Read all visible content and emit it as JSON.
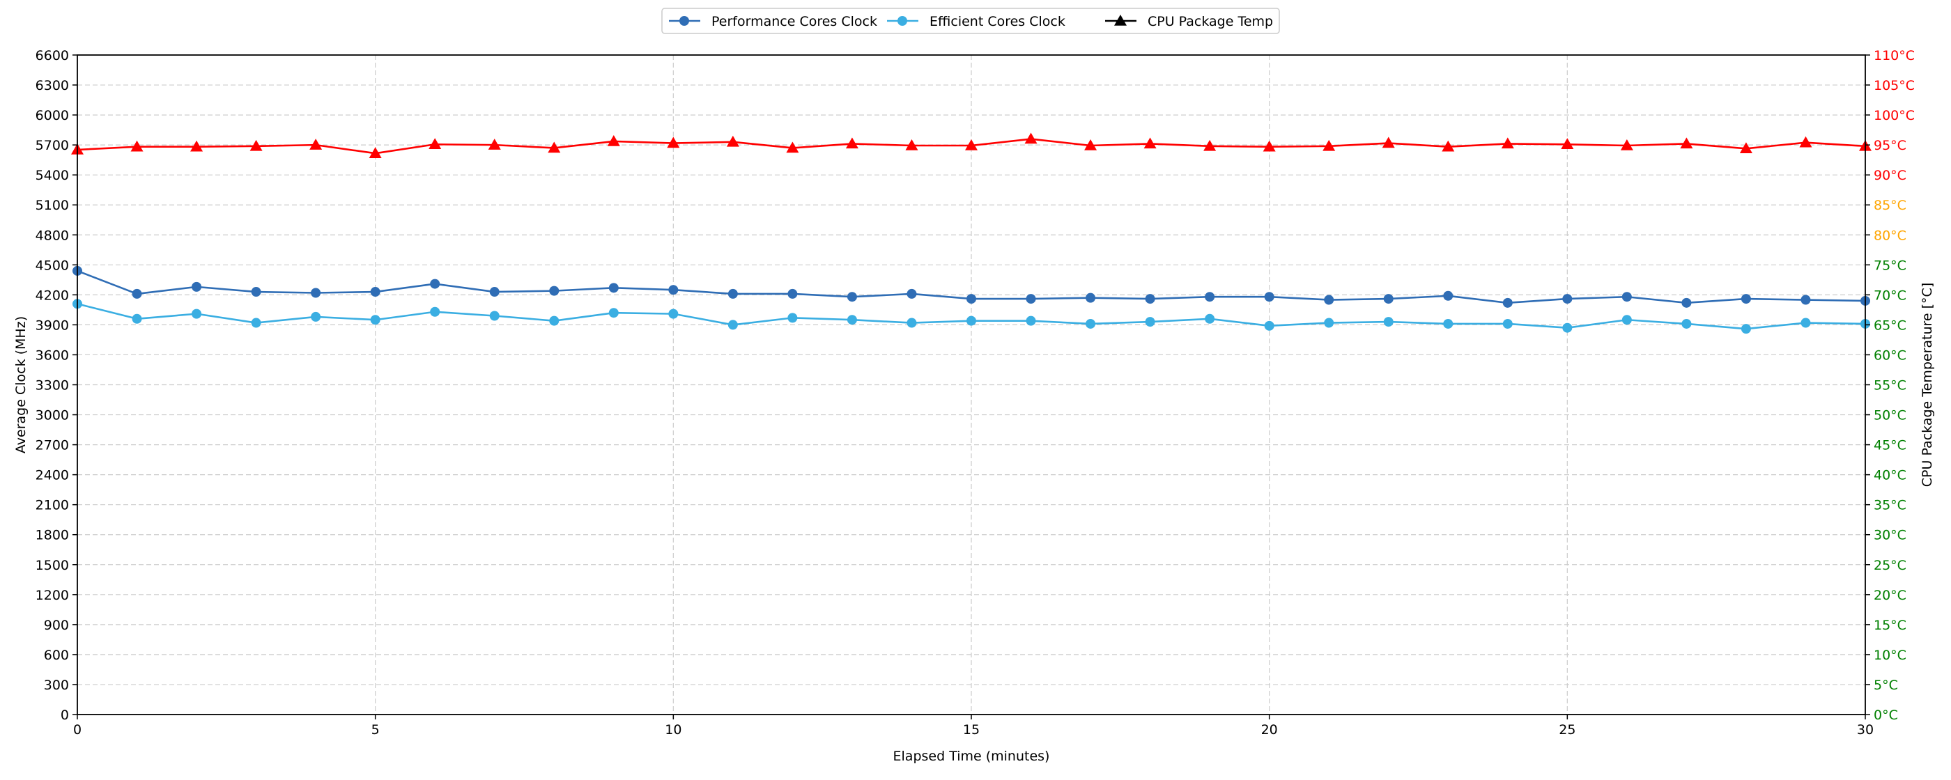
{
  "chart_data": {
    "type": "line",
    "xlabel": "Elapsed Time (minutes)",
    "ylabel": "Average Clock (MHz)",
    "y2label": "CPU Package Temperature [°C]",
    "xlim": [
      0,
      30
    ],
    "ylim": [
      0,
      6600
    ],
    "y2lim": [
      0,
      110
    ],
    "x_ticks": [
      0,
      5,
      10,
      15,
      20,
      25,
      30
    ],
    "y_ticks": [
      0,
      300,
      600,
      900,
      1200,
      1500,
      1800,
      2100,
      2400,
      2700,
      3000,
      3300,
      3600,
      3900,
      4200,
      4500,
      4800,
      5100,
      5400,
      5700,
      6000,
      6300,
      6600
    ],
    "y2_ticks": [
      0,
      5,
      10,
      15,
      20,
      25,
      30,
      35,
      40,
      45,
      50,
      55,
      60,
      65,
      70,
      75,
      80,
      85,
      90,
      95,
      100,
      105,
      110
    ],
    "y2_tick_suffix": "°C",
    "y2_tick_color_bands": [
      {
        "max": 75,
        "color": "#008000"
      },
      {
        "max": 85,
        "color": "#ffa500"
      },
      {
        "max": 110,
        "color": "#ff0000"
      }
    ],
    "grid": true,
    "legend_position": "top-center",
    "x": [
      0,
      1,
      2,
      3,
      4,
      5,
      6,
      7,
      8,
      9,
      10,
      11,
      12,
      13,
      14,
      15,
      16,
      17,
      18,
      19,
      20,
      21,
      22,
      23,
      24,
      25,
      26,
      27,
      28,
      29,
      30
    ],
    "series": [
      {
        "name": "Performance Cores Clock",
        "axis": "left",
        "color": "#2f6db5",
        "marker": "circle",
        "values": [
          4440,
          4210,
          4280,
          4230,
          4220,
          4230,
          4310,
          4230,
          4240,
          4270,
          4250,
          4210,
          4210,
          4180,
          4210,
          4160,
          4160,
          4170,
          4160,
          4180,
          4180,
          4150,
          4160,
          4190,
          4120,
          4160,
          4180,
          4120,
          4160,
          4150,
          4140
        ]
      },
      {
        "name": "Efficient Cores Clock",
        "axis": "left",
        "color": "#3aaee2",
        "marker": "circle",
        "values": [
          4110,
          3960,
          4010,
          3920,
          3980,
          3950,
          4030,
          3990,
          3940,
          4020,
          4010,
          3900,
          3970,
          3950,
          3920,
          3940,
          3940,
          3910,
          3930,
          3960,
          3890,
          3920,
          3930,
          3910,
          3910,
          3870,
          3950,
          3910,
          3860,
          3920,
          3910
        ]
      },
      {
        "name": "CPU Package Temp",
        "axis": "right",
        "color": "#ff0000",
        "legend_color": "#000000",
        "marker": "triangle",
        "values": [
          94.2,
          94.7,
          94.7,
          94.8,
          95.0,
          93.6,
          95.1,
          95.0,
          94.5,
          95.6,
          95.3,
          95.5,
          94.5,
          95.2,
          94.9,
          94.9,
          96.0,
          94.9,
          95.2,
          94.8,
          94.7,
          94.8,
          95.3,
          94.7,
          95.2,
          95.1,
          94.9,
          95.2,
          94.4,
          95.4,
          94.8
        ]
      }
    ]
  }
}
